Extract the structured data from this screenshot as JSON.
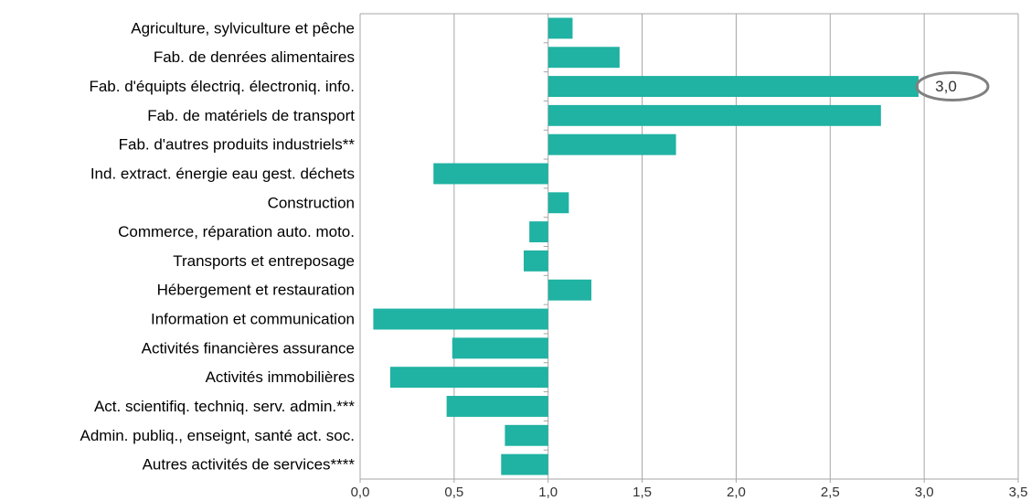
{
  "chart_data": {
    "type": "bar",
    "orientation": "horizontal",
    "title": "",
    "xlabel": "",
    "ylabel": "",
    "xlim": [
      0,
      3.5
    ],
    "baseline": 1.0,
    "x_ticks": [
      0,
      0.5,
      1.0,
      1.5,
      2.0,
      2.5,
      3.0,
      3.5
    ],
    "x_tick_labels": [
      "0,0",
      "0,5",
      "1,0",
      "1,5",
      "2,0",
      "2,5",
      "3,0",
      "3,5"
    ],
    "grid": true,
    "categories": [
      "Agriculture, sylviculture et pêche",
      "Fab. de denrées alimentaires",
      "Fab. d'équipts électriq. électroniq. info.",
      "Fab. de matériels de transport",
      "Fab. d'autres produits industriels**",
      "Ind. extract. énergie eau gest. déchets",
      "Construction",
      "Commerce, réparation auto. moto.",
      "Transports et entreposage",
      "Hébergement et restauration",
      "Information et communication",
      "Activités financières assurance",
      "Activités immobilières",
      "Act. scientifiq. techniq. serv. admin.***",
      "Admin. publiq., enseignt, santé act. soc.",
      "Autres activités de services****"
    ],
    "values": [
      1.13,
      1.38,
      2.97,
      2.77,
      1.68,
      0.39,
      1.11,
      0.9,
      0.87,
      1.23,
      0.07,
      0.49,
      0.16,
      0.46,
      0.77,
      0.75
    ],
    "bar_color": "#20b2a3",
    "annotation": {
      "category_index": 2,
      "label": "3,0"
    }
  }
}
